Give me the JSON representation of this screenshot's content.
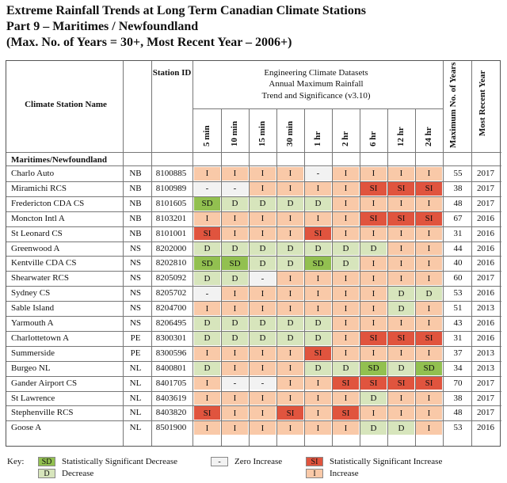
{
  "title": {
    "line1": "Extreme Rainfall Trends at Long Term Canadian Climate Stations",
    "line2": "Part 9 – Maritimes / Newfoundland",
    "line3": "(Max. No. of Years = 30+, Most Recent Year – 2006+)"
  },
  "header": {
    "station_name": "Climate Station Name",
    "station_id": "Station ID",
    "group_line1": "Engineering Climate Datasets",
    "group_line2": "Annual Maximum Rainfall",
    "group_line3": "Trend and Significance (v3.10)",
    "durations": [
      "5 min",
      "10 min",
      "15 min",
      "30 min",
      "1 hr",
      "2 hr",
      "6 hr",
      "12 hr",
      "24 hr"
    ],
    "max_years": "Maximum No. of Years",
    "recent_year": "Most Recent Year",
    "region": "Maritimes/Newfoundland"
  },
  "colors": {
    "SD": "#92c050",
    "D": "#d7e5bc",
    "I": "#f9c9a8",
    "SI": "#e0543e",
    "dash": "#f2f2f2"
  },
  "stations": [
    {
      "name": "Charlo Auto",
      "prov": "NB",
      "id": "8100885",
      "vals": [
        "I",
        "I",
        "I",
        "I",
        "-",
        "I",
        "I",
        "I",
        "I"
      ],
      "years": "55",
      "recent": "2017"
    },
    {
      "name": "Miramichi RCS",
      "prov": "NB",
      "id": "8100989",
      "vals": [
        "-",
        "-",
        "I",
        "I",
        "I",
        "I",
        "SI",
        "SI",
        "SI"
      ],
      "years": "38",
      "recent": "2017"
    },
    {
      "name": "Fredericton CDA CS",
      "prov": "NB",
      "id": "8101605",
      "vals": [
        "SD",
        "D",
        "D",
        "D",
        "D",
        "I",
        "I",
        "I",
        "I"
      ],
      "years": "48",
      "recent": "2017"
    },
    {
      "name": "Moncton Intl A",
      "prov": "NB",
      "id": "8103201",
      "vals": [
        "I",
        "I",
        "I",
        "I",
        "I",
        "I",
        "SI",
        "SI",
        "SI"
      ],
      "years": "67",
      "recent": "2016"
    },
    {
      "name": "St Leonard CS",
      "prov": "NB",
      "id": "8101001",
      "vals": [
        "SI",
        "I",
        "I",
        "I",
        "SI",
        "I",
        "I",
        "I",
        "I"
      ],
      "years": "31",
      "recent": "2016"
    },
    {
      "name": "Greenwood A",
      "prov": "NS",
      "id": "8202000",
      "vals": [
        "D",
        "D",
        "D",
        "D",
        "D",
        "D",
        "D",
        "I",
        "I"
      ],
      "years": "44",
      "recent": "2016"
    },
    {
      "name": "Kentville CDA CS",
      "prov": "NS",
      "id": "8202810",
      "vals": [
        "SD",
        "SD",
        "D",
        "D",
        "SD",
        "D",
        "I",
        "I",
        "I"
      ],
      "years": "40",
      "recent": "2016"
    },
    {
      "name": "Shearwater RCS",
      "prov": "NS",
      "id": "8205092",
      "vals": [
        "D",
        "D",
        "-",
        "I",
        "I",
        "I",
        "I",
        "I",
        "I"
      ],
      "years": "60",
      "recent": "2017"
    },
    {
      "name": "Sydney CS",
      "prov": "NS",
      "id": "8205702",
      "vals": [
        "-",
        "I",
        "I",
        "I",
        "I",
        "I",
        "I",
        "D",
        "D"
      ],
      "years": "53",
      "recent": "2016"
    },
    {
      "name": "Sable Island",
      "prov": "NS",
      "id": "8204700",
      "vals": [
        "I",
        "I",
        "I",
        "I",
        "I",
        "I",
        "I",
        "D",
        "I"
      ],
      "years": "51",
      "recent": "2013"
    },
    {
      "name": "Yarmouth A",
      "prov": "NS",
      "id": "8206495",
      "vals": [
        "D",
        "D",
        "D",
        "D",
        "D",
        "I",
        "I",
        "I",
        "I"
      ],
      "years": "43",
      "recent": "2016"
    },
    {
      "name": "Charlottetown A",
      "prov": "PE",
      "id": "8300301",
      "vals": [
        "D",
        "D",
        "D",
        "D",
        "D",
        "I",
        "SI",
        "SI",
        "SI"
      ],
      "years": "31",
      "recent": "2016"
    },
    {
      "name": "Summerside",
      "prov": "PE",
      "id": "8300596",
      "vals": [
        "I",
        "I",
        "I",
        "I",
        "SI",
        "I",
        "I",
        "I",
        "I"
      ],
      "years": "37",
      "recent": "2013"
    },
    {
      "name": "Burgeo NL",
      "prov": "NL",
      "id": "8400801",
      "vals": [
        "D",
        "I",
        "I",
        "I",
        "D",
        "D",
        "SD",
        "D",
        "SD"
      ],
      "years": "34",
      "recent": "2013"
    },
    {
      "name": "Gander Airport CS",
      "prov": "NL",
      "id": "8401705",
      "vals": [
        "I",
        "-",
        "-",
        "I",
        "I",
        "SI",
        "SI",
        "SI",
        "SI"
      ],
      "years": "70",
      "recent": "2017"
    },
    {
      "name": "St Lawrence",
      "prov": "NL",
      "id": "8403619",
      "vals": [
        "I",
        "I",
        "I",
        "I",
        "I",
        "I",
        "D",
        "I",
        "I"
      ],
      "years": "38",
      "recent": "2017"
    },
    {
      "name": "Stephenville RCS",
      "prov": "NL",
      "id": "8403820",
      "vals": [
        "SI",
        "I",
        "I",
        "SI",
        "I",
        "SI",
        "I",
        "I",
        "I"
      ],
      "years": "48",
      "recent": "2017"
    },
    {
      "name": "Goose A",
      "prov": "NL",
      "id": "8501900",
      "vals": [
        "I",
        "I",
        "I",
        "I",
        "I",
        "I",
        "D",
        "D",
        "I"
      ],
      "years": "53",
      "recent": "2016"
    }
  ],
  "key": {
    "label": "Key:",
    "sd_code": "SD",
    "sd_text": "Statistically Significant Decrease",
    "d_code": "D",
    "d_text": "Decrease",
    "zero_code": "-",
    "zero_text": "Zero Increase",
    "si_code": "SI",
    "si_text": "Statistically Significant Increase",
    "i_code": "I",
    "i_text": "Increase"
  }
}
